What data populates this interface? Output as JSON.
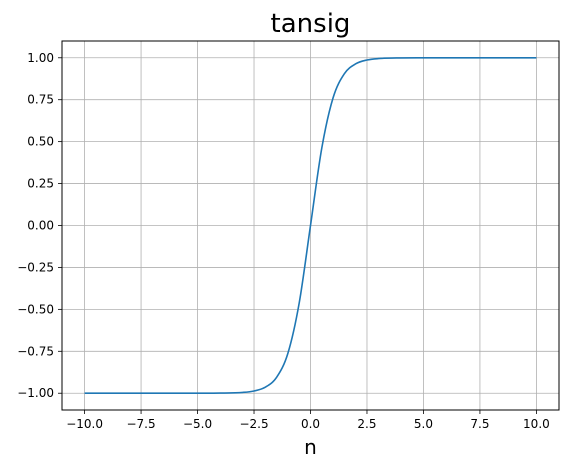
{
  "chart_data": {
    "type": "line",
    "title": "tansig",
    "xlabel": "n",
    "ylabel": "",
    "xlim": [
      -11,
      11
    ],
    "ylim": [
      -1.1,
      1.1
    ],
    "xticks": [
      -10,
      -7.5,
      -5,
      -2.5,
      0,
      2.5,
      5,
      7.5,
      10
    ],
    "xtick_labels": [
      "−10.0",
      "−7.5",
      "−5.0",
      "−2.5",
      "0.0",
      "2.5",
      "5.0",
      "7.5",
      "10.0"
    ],
    "yticks": [
      -1,
      -0.75,
      -0.5,
      -0.25,
      0,
      0.25,
      0.5,
      0.75,
      1
    ],
    "ytick_labels": [
      "−1.00",
      "−0.75",
      "−0.50",
      "−0.25",
      "0.00",
      "0.25",
      "0.50",
      "0.75",
      "1.00"
    ],
    "grid": true,
    "series": [
      {
        "color": "#1f77b4",
        "x": [
          -10,
          -5,
          -4,
          -3,
          -2.5,
          -2,
          -1.5,
          -1,
          -0.5,
          0,
          0.5,
          1,
          1.5,
          2,
          2.5,
          3,
          4,
          5,
          10
        ],
        "y": [
          -1,
          -0.9999,
          -0.9993,
          -0.9951,
          -0.9866,
          -0.964,
          -0.9051,
          -0.7616,
          -0.4621,
          0,
          0.4621,
          0.7616,
          0.9051,
          0.964,
          0.9866,
          0.9951,
          0.9993,
          0.9999,
          1
        ]
      }
    ]
  }
}
